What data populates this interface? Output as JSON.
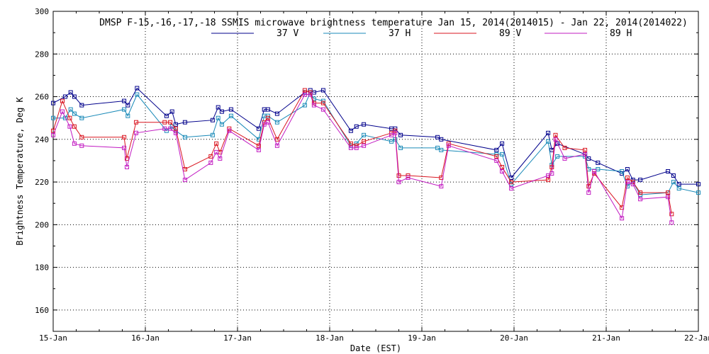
{
  "chart_data": {
    "type": "line",
    "title": "DMSP F-15,-16,-17,-18 SSMIS microwave brightness temperature Jan 15, 2014(2014015) - Jan 22, 2014(2014022)",
    "xlabel": "Date (EST)",
    "ylabel": "Brightness Temperature, Deg K",
    "xlim": [
      0,
      7
    ],
    "ylim": [
      150,
      300
    ],
    "x_ticks": [
      0,
      1,
      2,
      3,
      4,
      5,
      6,
      7
    ],
    "x_tick_labels": [
      "15-Jan",
      "16-Jan",
      "17-Jan",
      "18-Jan",
      "19-Jan",
      "20-Jan",
      "21-Jan",
      "22-Jan"
    ],
    "y_ticks": [
      160,
      180,
      200,
      220,
      240,
      260,
      280,
      300
    ],
    "y_tick_labels": [
      "160",
      "180",
      "200",
      "220",
      "240",
      "260",
      "280",
      "300"
    ],
    "grid": true,
    "legend_position": "top-center",
    "series": [
      {
        "name": "37 V",
        "color": "#00008b",
        "x": [
          0.0,
          0.13,
          0.19,
          0.23,
          0.31,
          0.77,
          0.81,
          0.91,
          1.23,
          1.29,
          1.33,
          1.43,
          1.73,
          1.79,
          1.83,
          1.93,
          2.23,
          2.29,
          2.33,
          2.43,
          2.73,
          2.79,
          2.83,
          2.93,
          3.23,
          3.29,
          3.37,
          3.67,
          3.71,
          3.77,
          4.17,
          4.21,
          4.81,
          4.87,
          4.97,
          5.37,
          5.41,
          5.47,
          5.77,
          5.81,
          5.91,
          6.17,
          6.23,
          6.29,
          6.37,
          6.67,
          6.73,
          6.79,
          7.0
        ],
        "values": [
          257,
          260,
          262,
          260,
          256,
          258,
          256,
          264,
          251,
          253,
          247,
          248,
          249,
          255,
          253,
          254,
          245,
          254,
          254,
          252,
          262,
          263,
          262,
          263,
          244,
          246,
          247,
          245,
          245,
          242,
          241,
          240,
          235,
          238,
          222,
          243,
          235,
          238,
          233,
          231,
          229,
          224,
          226,
          221,
          221,
          225,
          223,
          219,
          219
        ]
      },
      {
        "name": "37 H",
        "color": "#1a8ab8",
        "x": [
          0.0,
          0.13,
          0.19,
          0.23,
          0.31,
          0.77,
          0.81,
          0.91,
          1.23,
          1.29,
          1.33,
          1.43,
          1.73,
          1.79,
          1.83,
          1.93,
          2.23,
          2.29,
          2.33,
          2.43,
          2.73,
          2.79,
          2.83,
          2.93,
          3.23,
          3.29,
          3.37,
          3.67,
          3.71,
          3.77,
          4.17,
          4.21,
          4.81,
          4.87,
          4.97,
          5.37,
          5.41,
          5.47,
          5.77,
          5.81,
          5.91,
          6.17,
          6.23,
          6.29,
          6.37,
          6.67,
          6.73,
          6.79,
          7.0
        ],
        "values": [
          250,
          250,
          254,
          252,
          250,
          254,
          251,
          261,
          244,
          246,
          244,
          241,
          242,
          250,
          247,
          251,
          240,
          251,
          251,
          248,
          256,
          262,
          259,
          258,
          237,
          238,
          242,
          239,
          240,
          236,
          236,
          235,
          233,
          233,
          219,
          239,
          228,
          232,
          232,
          226,
          226,
          225,
          218,
          220,
          214,
          215,
          220,
          217,
          215
        ]
      },
      {
        "name": "89 V",
        "color": "#d9141f",
        "x": [
          0.0,
          0.1,
          0.18,
          0.23,
          0.31,
          0.77,
          0.8,
          0.9,
          1.21,
          1.27,
          1.33,
          1.43,
          1.71,
          1.77,
          1.81,
          1.91,
          2.23,
          2.29,
          2.33,
          2.43,
          2.73,
          2.79,
          2.83,
          2.93,
          3.23,
          3.29,
          3.37,
          3.67,
          3.71,
          3.75,
          3.85,
          4.21,
          4.29,
          4.81,
          4.87,
          4.97,
          5.37,
          5.41,
          5.45,
          5.55,
          5.77,
          5.81,
          5.87,
          6.17,
          6.23,
          6.29,
          6.37,
          6.67,
          6.71
        ],
        "values": [
          244,
          258,
          250,
          246,
          241,
          241,
          231,
          248,
          248,
          248,
          245,
          226,
          232,
          238,
          234,
          245,
          237,
          248,
          250,
          240,
          263,
          262,
          257,
          257,
          238,
          237,
          239,
          243,
          244,
          223,
          223,
          222,
          238,
          232,
          227,
          220,
          221,
          227,
          242,
          236,
          235,
          218,
          224,
          208,
          222,
          220,
          215,
          215,
          205
        ]
      },
      {
        "name": "89 H",
        "color": "#c21bc2",
        "x": [
          0.0,
          0.1,
          0.18,
          0.23,
          0.31,
          0.77,
          0.8,
          0.9,
          1.21,
          1.27,
          1.33,
          1.43,
          1.71,
          1.77,
          1.81,
          1.91,
          2.23,
          2.29,
          2.33,
          2.43,
          2.73,
          2.79,
          2.83,
          2.93,
          3.23,
          3.29,
          3.37,
          3.67,
          3.71,
          3.75,
          3.85,
          4.21,
          4.29,
          4.81,
          4.87,
          4.97,
          5.37,
          5.41,
          5.45,
          5.55,
          5.77,
          5.81,
          5.87,
          6.17,
          6.23,
          6.29,
          6.37,
          6.67,
          6.71
        ],
        "values": [
          242,
          253,
          246,
          238,
          237,
          236,
          227,
          243,
          245,
          245,
          243,
          221,
          229,
          234,
          231,
          244,
          235,
          247,
          248,
          237,
          261,
          261,
          256,
          254,
          236,
          236,
          237,
          242,
          243,
          220,
          222,
          218,
          237,
          230,
          225,
          217,
          223,
          224,
          240,
          231,
          233,
          215,
          225,
          203,
          220,
          219,
          212,
          213,
          201
        ]
      }
    ]
  }
}
